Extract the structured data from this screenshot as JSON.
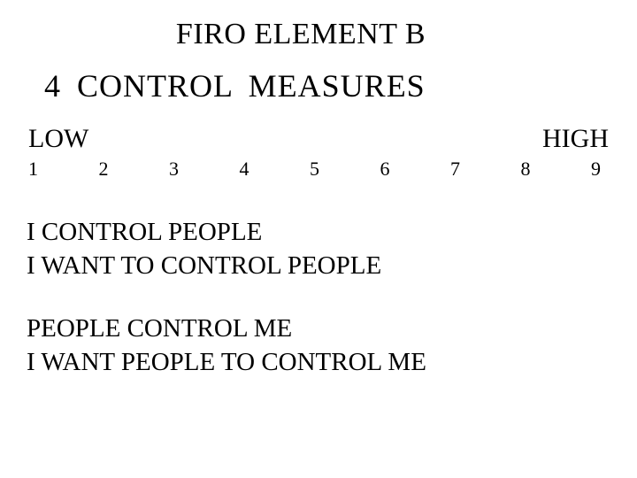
{
  "title": "FIRO ELEMENT B",
  "subtitle": "4  CONTROL  MEASURES",
  "scale": {
    "low_label": "LOW",
    "high_label": "HIGH",
    "n1": "1",
    "n2": "2",
    "n3": "3",
    "n4": "4",
    "n5": "5",
    "n6": "6",
    "n7": "7",
    "n8": "8",
    "n9": "9"
  },
  "lines": {
    "l1": "I CONTROL PEOPLE",
    "l2": "I WANT TO CONTROL PEOPLE",
    "l3": "PEOPLE CONTROL ME",
    "l4": "I WANT PEOPLE TO CONTROL ME"
  },
  "colors": {
    "background": "#ffffff",
    "text": "#000000"
  },
  "typography": {
    "font_family": "Times New Roman",
    "title_fontsize": 34,
    "subtitle_fontsize": 36,
    "scale_label_fontsize": 30,
    "scale_number_fontsize": 22,
    "body_fontsize": 29
  }
}
